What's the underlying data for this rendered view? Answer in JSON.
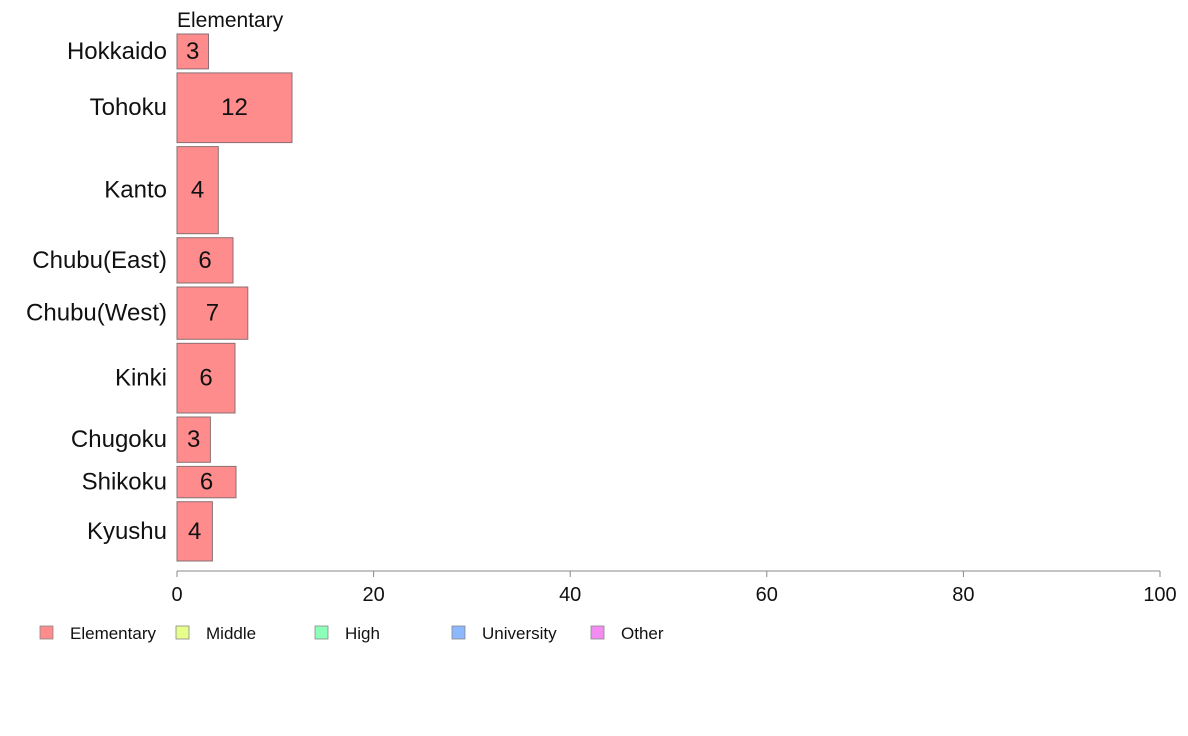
{
  "chart_data": {
    "type": "bar",
    "orientation": "horizontal",
    "facet_title": "Elementary",
    "categories": [
      "Hokkaido",
      "Tohoku",
      "Kanto",
      "Chubu(East)",
      "Chubu(West)",
      "Kinki",
      "Chugoku",
      "Shikoku",
      "Kyushu"
    ],
    "band_weights": [
      1,
      2,
      2.5,
      1.3,
      1.5,
      2,
      1.3,
      0.9,
      1.7
    ],
    "series": [
      {
        "name": "Elementary",
        "color": "#ff8c8c",
        "values": [
          3.2,
          11.7,
          4.2,
          5.7,
          7.2,
          5.9,
          3.4,
          6.0,
          3.6
        ],
        "labels": [
          "3",
          "12",
          "4",
          "6",
          "7",
          "6",
          "3",
          "6",
          "4"
        ]
      }
    ],
    "xlim": [
      0,
      100
    ],
    "x_ticks": [
      0,
      20,
      40,
      60,
      80,
      100
    ],
    "x_tick_labels": [
      "0",
      "20",
      "40",
      "60",
      "80",
      "100"
    ],
    "grid": false,
    "legend_position": "bottom-left",
    "legend": [
      {
        "label": "Elementary",
        "color": "#ff8c8c"
      },
      {
        "label": "Middle",
        "color": "#e6ff8c"
      },
      {
        "label": "High",
        "color": "#8cffb8"
      },
      {
        "label": "University",
        "color": "#8cb8ff"
      },
      {
        "label": "Other",
        "color": "#f28cf2"
      }
    ]
  }
}
